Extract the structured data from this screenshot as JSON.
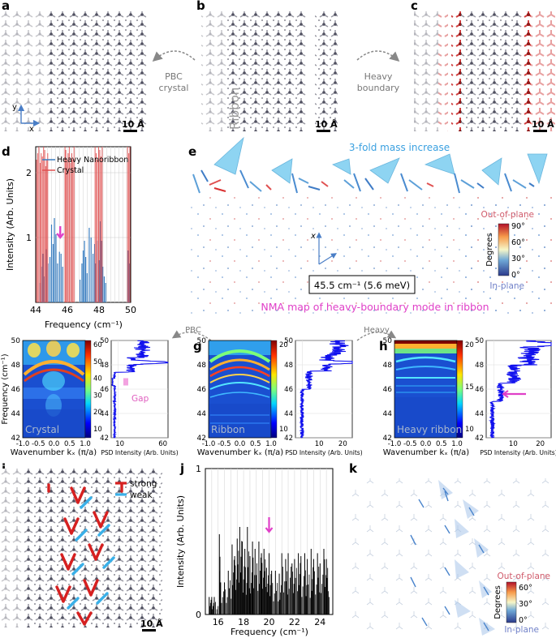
{
  "panels": {
    "a": {
      "letter": "a",
      "axis_x": "x",
      "axis_y": "y",
      "scale": "10 Å"
    },
    "b": {
      "letter": "b",
      "ribbon_label": "Ribbon",
      "scale": "10 Å"
    },
    "c": {
      "letter": "c",
      "scale": "10 Å"
    },
    "ab_arrow": {
      "line1": "PBC",
      "line2": "crystal"
    },
    "bc_arrow": {
      "line1": "Heavy",
      "line2": "boundary"
    },
    "d": {
      "letter": "d"
    },
    "e": {
      "letter": "e",
      "title": "3-fold mass increase",
      "axis_label": "x",
      "freq_box": "45.5 cm⁻¹ (5.6 meV)",
      "caption": "NMA map of heavy-boundary mode in ribbon",
      "colorbar": {
        "top_label": "Out-of-plane",
        "bottom_label": "In-plane",
        "title": "Degrees",
        "ticks": [
          "90°",
          "60°",
          "30°",
          "0°"
        ]
      }
    },
    "fgh_arrow1": "PBC",
    "fgh_arrow2": "Heavy",
    "f": {
      "letter": "f",
      "inset_label": "Crystal",
      "gap_label": "Gap",
      "ylabel": "Frequency (cm⁻¹)",
      "xlabel": "Wavenumber kₓ (π/a)",
      "psd_xlabel": "PSD Intensity (Arb. Units)"
    },
    "g": {
      "letter": "g",
      "inset_label": "Ribbon",
      "xlabel": "Wavenumber kₓ (π/a)",
      "psd_xlabel": "PSD Intensity (Arb. Units)"
    },
    "h": {
      "letter": "h",
      "inset_label": "Heavy ribbon",
      "xlabel": "Wavenumber kₓ (π/a)",
      "psd_xlabel": "PSD Intensity (Arb. Units)"
    },
    "i": {
      "letter": "i",
      "legend_strong": "strong",
      "legend_weak": "weak",
      "scale": "10 Å"
    },
    "j": {
      "letter": "j"
    },
    "k": {
      "letter": "k",
      "colorbar": {
        "top_label": "Out-of-plane",
        "bottom_label": "In-plane",
        "title": "Degrees",
        "ticks": [
          "60°",
          "30°",
          "0°"
        ]
      }
    }
  },
  "colors": {
    "accent": "#e040c8",
    "spectrum_blue": "#3a7ec0",
    "crystal_red": "#e05050",
    "nma_blue": "#5fb8e8",
    "psd_blue": "#1010ee"
  },
  "chart_data": [
    {
      "id": "d",
      "type": "bar",
      "title": "",
      "xlabel": "Frequency (cm⁻¹)",
      "ylabel": "Intensity (Arb. Units)",
      "xlim": [
        44,
        50
      ],
      "ylim": [
        0,
        2.4
      ],
      "xticks": [
        "44",
        "46",
        "48",
        "50"
      ],
      "yticks": [
        "1",
        "2"
      ],
      "legend": [
        "Heavy Nanoribbon",
        "Crystal"
      ],
      "legend_position": "top-right",
      "series": [
        {
          "name": "Heavy Nanoribbon",
          "x": [
            44.28,
            44.36,
            44.46,
            44.55,
            44.68,
            44.78,
            44.9,
            45.0,
            45.1,
            45.18,
            45.28,
            45.38,
            45.5,
            45.6,
            45.7,
            46.8,
            46.92,
            47.0,
            47.08,
            47.16,
            47.25,
            47.38,
            47.5,
            47.62,
            47.72,
            47.8,
            47.9,
            48.0,
            48.08,
            48.15,
            48.24,
            48.33,
            48.42,
            49.85,
            49.9
          ],
          "values": [
            0.3,
            0.55,
            0.75,
            0.4,
            0.82,
            0.6,
            0.7,
            1.2,
            0.9,
            1.3,
            1.05,
            0.6,
            0.78,
            0.75,
            0.55,
            0.35,
            0.6,
            0.8,
            0.95,
            0.7,
            0.45,
            1.15,
            1.0,
            0.75,
            0.9,
            0.6,
            0.95,
            0.65,
            1.25,
            0.95,
            0.55,
            0.4,
            0.3,
            0.8,
            0.6
          ]
        },
        {
          "name": "Crystal",
          "x": [
            44.05,
            44.12,
            44.2,
            44.28,
            44.35,
            44.42,
            44.5,
            44.57,
            44.63,
            44.7,
            44.76,
            45.85,
            45.9,
            45.97,
            46.05,
            46.12,
            46.2,
            46.28,
            46.35,
            46.42,
            47.75,
            47.82,
            47.9,
            47.97,
            48.05,
            48.12,
            48.2,
            49.8,
            49.88,
            49.95
          ],
          "values": [
            2.2,
            2.3,
            2.4,
            2.15,
            2.3,
            2.25,
            2.4,
            2.35,
            2.1,
            2.2,
            2.3,
            2.4,
            2.35,
            2.2,
            2.3,
            2.4,
            2.15,
            2.3,
            2.2,
            2.4,
            2.4,
            2.3,
            2.2,
            2.4,
            2.35,
            2.25,
            2.4,
            2.4,
            2.3,
            2.4
          ]
        }
      ],
      "annotation": {
        "type": "arrow",
        "x": 45.55,
        "y": 1.0
      }
    },
    {
      "id": "f",
      "type": "heatmap",
      "title": "Crystal",
      "xlabel": "Wavenumber kₓ (π/a)",
      "ylabel": "Frequency (cm⁻¹)",
      "xlim": [
        -1,
        1
      ],
      "ylim": [
        42,
        50
      ],
      "xticks": [
        "-1.0",
        "-0.5",
        "0.0",
        "0.5",
        "1.0"
      ],
      "yticks": [
        "42",
        "44",
        "46",
        "48",
        "50"
      ],
      "colorbar_ticks": [
        "60",
        "50",
        "40",
        "30",
        "20",
        "10"
      ],
      "psd_xticks": [
        "10",
        "60"
      ],
      "psd_peak_freq": 48.2,
      "gap": [
        46.3,
        46.9
      ]
    },
    {
      "id": "g",
      "type": "heatmap",
      "title": "Ribbon",
      "xlim": [
        -1,
        1
      ],
      "ylim": [
        42,
        50
      ],
      "xticks": [
        "-1.0",
        "-0.5",
        "0.0",
        "0.5",
        "1.0"
      ],
      "yticks": [
        "42",
        "44",
        "46",
        "48",
        "50"
      ],
      "colorbar_ticks": [
        "20",
        "10"
      ],
      "psd_xticks": [
        "10",
        "20"
      ],
      "psd_peak_freq": 48.2
    },
    {
      "id": "h",
      "type": "heatmap",
      "title": "Heavy ribbon",
      "xlim": [
        -1,
        1
      ],
      "ylim": [
        42,
        50
      ],
      "xticks": [
        "-1.0",
        "-0.5",
        "0.0",
        "0.5",
        "1.0"
      ],
      "yticks": [
        "42",
        "44",
        "46",
        "48",
        "50"
      ],
      "colorbar_ticks": [
        "20",
        "15",
        "10"
      ],
      "psd_xticks": [
        "10",
        "20"
      ],
      "psd_peak_freq": 49.7,
      "annotation": {
        "type": "arrow",
        "freq": 45.6
      }
    },
    {
      "id": "j",
      "type": "bar",
      "title": "",
      "xlabel": "Frequency (cm⁻¹)",
      "ylabel": "Intensity (Arb. Units)",
      "xlim": [
        15,
        25
      ],
      "ylim": [
        0,
        1
      ],
      "xticks": [
        "16",
        "18",
        "20",
        "22",
        "24"
      ],
      "yticks": [
        "0",
        "1"
      ],
      "series": [
        {
          "name": "Heavy Nanoribbon",
          "x": [
            15.3,
            15.5,
            15.7,
            16.1,
            16.2,
            16.5,
            16.8,
            17.1,
            17.3,
            17.5,
            17.7,
            17.9,
            18.1,
            18.3,
            18.5,
            18.7,
            18.9,
            19.2,
            19.4,
            19.6,
            19.8,
            20.0,
            20.2,
            20.5,
            20.8,
            21.0,
            21.3,
            21.5,
            21.8,
            22.0,
            22.3,
            22.5,
            22.8,
            23.0,
            23.3,
            23.5,
            23.8,
            24.0,
            24.3,
            24.5,
            24.7
          ],
          "values": [
            0.12,
            0.12,
            0.12,
            0.55,
            0.22,
            0.22,
            0.3,
            0.48,
            0.4,
            0.52,
            0.6,
            0.5,
            0.45,
            0.6,
            0.4,
            0.5,
            0.45,
            0.5,
            0.42,
            0.45,
            0.32,
            0.42,
            0.3,
            0.3,
            0.28,
            0.42,
            0.38,
            0.42,
            0.35,
            0.38,
            0.42,
            0.4,
            0.42,
            0.38,
            0.45,
            0.38,
            0.42,
            0.35,
            0.45,
            0.38,
            0.12
          ]
        }
      ],
      "annotation": {
        "type": "arrow",
        "x": 20.0,
        "y": 0.5
      }
    }
  ]
}
